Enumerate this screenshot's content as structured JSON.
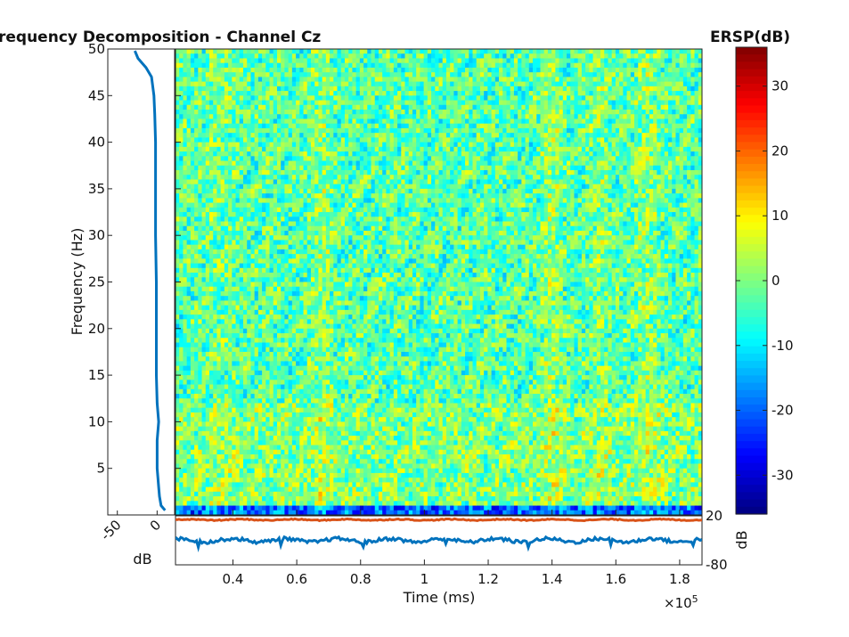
{
  "chart_data": {
    "type": "heatmap",
    "title": "requency Decomposition - Channel Cz",
    "colorbar": {
      "title": "ERSP(dB)",
      "range": [
        -36,
        36
      ],
      "ticks": [
        30,
        20,
        10,
        0,
        -10,
        -20,
        -30
      ],
      "tick_labels": [
        "30",
        "20",
        "10",
        "0",
        "-10",
        "-20",
        "-30"
      ],
      "colormap": "jet"
    },
    "main": {
      "xlabel": "Time (ms)",
      "ylabel": "Frequency (Hz)",
      "x_multiplier_label": "×10",
      "x_multiplier_exponent": "5",
      "xlim": [
        0.22,
        1.87
      ],
      "ylim": [
        0,
        50
      ],
      "x_ticks": [
        0.4,
        0.6,
        0.8,
        1,
        1.2,
        1.4,
        1.6,
        1.8
      ],
      "x_tick_labels": [
        "0.4",
        "0.6",
        "0.8",
        "1",
        "1.2",
        "1.4",
        "1.6",
        "1.8"
      ],
      "y_ticks": [
        5,
        10,
        15,
        20,
        25,
        30,
        35,
        40,
        45,
        50
      ],
      "y_tick_labels": [
        "5",
        "10",
        "15",
        "20",
        "25",
        "30",
        "35",
        "40",
        "45",
        "50"
      ]
    },
    "spectrum_panel": {
      "xlabel": "dB",
      "xlim": [
        -62,
        22
      ],
      "x_ticks": [
        -50,
        0
      ],
      "x_tick_labels": [
        "-50",
        "0"
      ],
      "ylim": [
        0,
        50
      ],
      "series": [
        {
          "color": "#0072bd",
          "freq": [
            0.5,
            1,
            2,
            3,
            5,
            8,
            10,
            12,
            15,
            20,
            25,
            30,
            35,
            40,
            43,
            45,
            47,
            48,
            49,
            49.8
          ],
          "db": [
            10,
            5,
            3,
            2,
            0,
            0,
            2,
            0,
            -1,
            -1,
            -1,
            -2,
            -2,
            -2,
            -3,
            -4,
            -7,
            -14,
            -24,
            -28
          ]
        }
      ]
    },
    "erp_panel": {
      "ylabel": "dB",
      "ylim": [
        -80,
        20
      ],
      "y_ticks": [
        20,
        -80
      ],
      "y_tick_labels": [
        "20",
        "-80"
      ],
      "series": [
        {
          "color": "#d95319",
          "level": 12,
          "noise": 2
        },
        {
          "color": "#0072bd",
          "level": -30,
          "noise": 7
        }
      ]
    }
  }
}
